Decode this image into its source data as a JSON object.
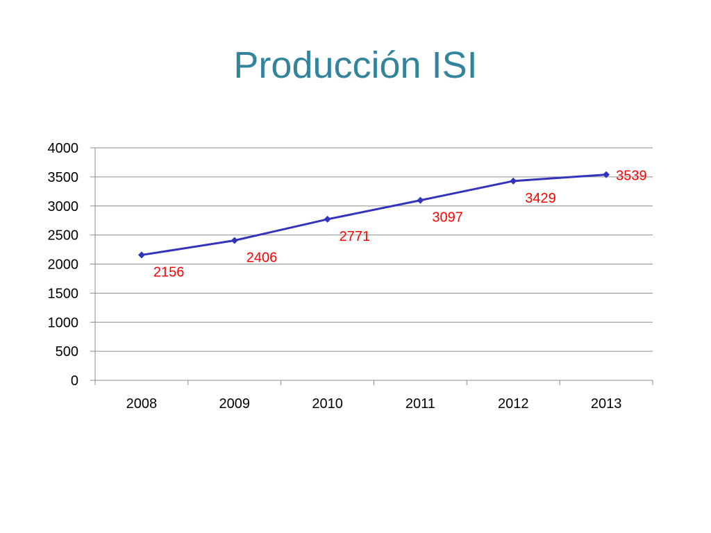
{
  "title": "Producción ISI",
  "colors": {
    "title": "#31849b",
    "line": "#3333bb",
    "data_label": "#ff0000",
    "grid": "#8c8c8c",
    "axis": "#8c8c8c"
  },
  "chart_data": {
    "type": "line",
    "title": "Producción ISI",
    "xlabel": "",
    "ylabel": "",
    "categories": [
      "2008",
      "2009",
      "2010",
      "2011",
      "2012",
      "2013"
    ],
    "series": [
      {
        "values": [
          2156,
          2406,
          2771,
          3097,
          3429,
          3539
        ],
        "marker": "diamond"
      }
    ],
    "data_labels": [
      "2156",
      "2406",
      "2771",
      "3097",
      "3429",
      "3539"
    ],
    "ylim": [
      0,
      4000
    ],
    "yticks": [
      0,
      500,
      1000,
      1500,
      2000,
      2500,
      3000,
      3500,
      4000
    ],
    "grid": true,
    "legend": "none"
  }
}
